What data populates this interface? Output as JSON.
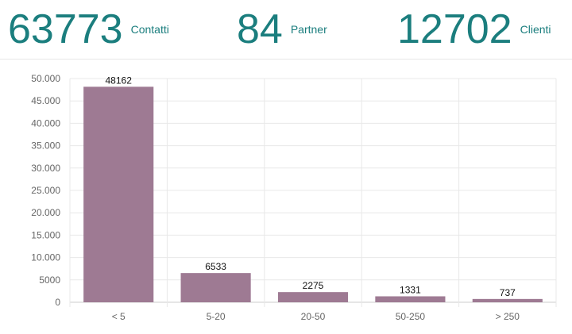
{
  "kpis": [
    {
      "value": "63773",
      "label": "Contatti"
    },
    {
      "value": "84",
      "label": "Partner"
    },
    {
      "value": "12702",
      "label": "Clienti"
    }
  ],
  "colors": {
    "accent": "#1b7e7e",
    "bar": "#9e7a93",
    "grid": "#e8e8e8",
    "axis": "#cccccc",
    "tick_text": "#666666",
    "label_text": "#111111"
  },
  "chart_data": {
    "type": "bar",
    "categories": [
      "< 5",
      "5-20",
      "20-50",
      "50-250",
      "> 250"
    ],
    "values": [
      48162,
      6533,
      2275,
      1331,
      737
    ],
    "value_labels": [
      "48162",
      "6533",
      "2275",
      "1331",
      "737"
    ],
    "ylim": [
      0,
      50000
    ],
    "yticks": [
      0,
      5000,
      10000,
      15000,
      20000,
      25000,
      30000,
      35000,
      40000,
      45000,
      50000
    ],
    "ytick_labels": [
      "0",
      "5000",
      "10.000",
      "15.000",
      "20.000",
      "25.000",
      "30.000",
      "35.000",
      "40.000",
      "45.000",
      "50.000"
    ],
    "grid": true,
    "legend": "none",
    "title": "",
    "xlabel": "",
    "ylabel": ""
  }
}
